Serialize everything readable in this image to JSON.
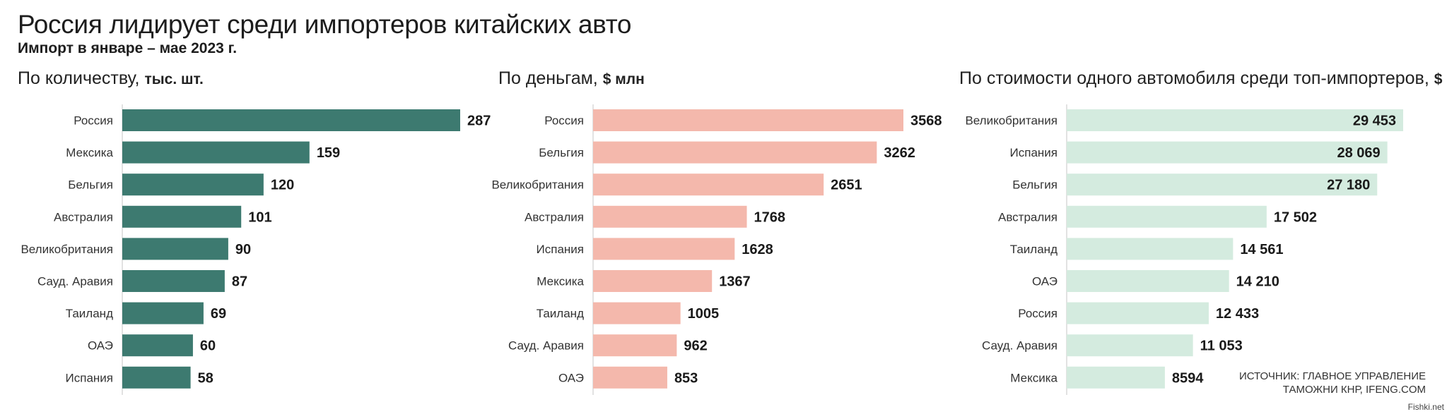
{
  "title": "Россия лидирует среди импортеров китайских авто",
  "subtitle": "Импорт в январе – мае 2023 г.",
  "source_line1": "ИСТОЧНИК: ГЛАВНОЕ УПРАВЛЕНИЕ",
  "source_line2": "ТАМОЖНИ КНР, IFENG.COM",
  "watermark": "Fishki.net",
  "panels": [
    {
      "title": "По количеству,",
      "unit": "тыс. шт."
    },
    {
      "title": "По деньгам,",
      "unit": "$ млн"
    },
    {
      "title": "По стоимости одного автомобиля среди топ-импортеров,",
      "unit": "$"
    }
  ],
  "chart_data": [
    {
      "type": "bar",
      "orientation": "horizontal",
      "color": "#3d7a70",
      "categories": [
        "Россия",
        "Мексика",
        "Бельгия",
        "Австралия",
        "Великобритания",
        "Сауд. Аравия",
        "Таиланд",
        "ОАЭ",
        "Испания"
      ],
      "values": [
        287,
        159,
        120,
        101,
        90,
        87,
        69,
        60,
        58
      ],
      "labels": [
        "287",
        "159",
        "120",
        "101",
        "90",
        "87",
        "69",
        "60",
        "58"
      ]
    },
    {
      "type": "bar",
      "orientation": "horizontal",
      "color": "#f4b8ac",
      "categories": [
        "Россия",
        "Бельгия",
        "Великобритания",
        "Австралия",
        "Испания",
        "Мексика",
        "Таиланд",
        "Сауд. Аравия",
        "ОАЭ"
      ],
      "values": [
        3568,
        3262,
        2651,
        1768,
        1628,
        1367,
        1005,
        962,
        853
      ],
      "labels": [
        "3568",
        "3262",
        "2651",
        "1768",
        "1628",
        "1367",
        "1005",
        "962",
        "853"
      ]
    },
    {
      "type": "bar",
      "orientation": "horizontal",
      "color": "#d4ebdf",
      "categories": [
        "Великобритания",
        "Испания",
        "Бельгия",
        "Австралия",
        "Таиланд",
        "ОАЭ",
        "Россия",
        "Сауд. Аравия",
        "Мексика"
      ],
      "values": [
        29453,
        28069,
        27180,
        17502,
        14561,
        14210,
        12433,
        11053,
        8594
      ],
      "labels": [
        "29 453",
        "28 069",
        "27 180",
        "17 502",
        "14 561",
        "14 210",
        "12 433",
        "11 053",
        "8594"
      ]
    }
  ]
}
